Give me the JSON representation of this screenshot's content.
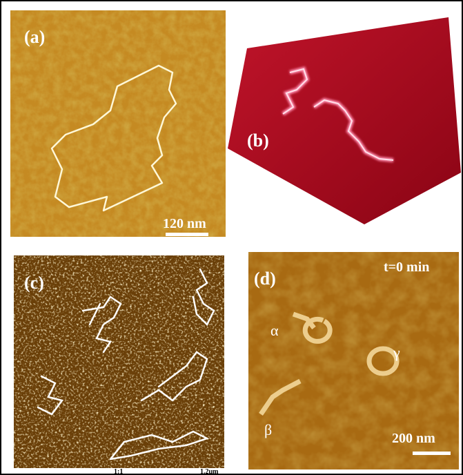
{
  "panels": [
    {
      "label": "(a)",
      "scale_bar": "120 nm"
    },
    {
      "label": "(b)"
    },
    {
      "label": "(c)",
      "axis_labels": [
        "1:1",
        "1.2μm"
      ]
    },
    {
      "label": "(d)",
      "time": "t=0 min",
      "markers": [
        "α",
        "β",
        "γ"
      ],
      "scale_bar": "200 nm"
    }
  ]
}
